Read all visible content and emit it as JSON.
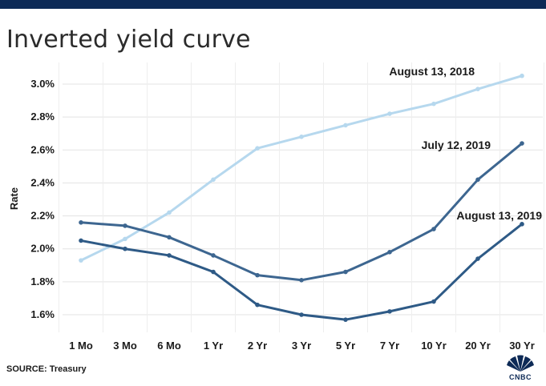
{
  "header": {
    "title": "Inverted yield curve"
  },
  "footer": {
    "source": "SOURCE: Treasury",
    "logo_text": "CNBC"
  },
  "chart_data": {
    "type": "line",
    "ylabel": "Rate",
    "xlabel": "",
    "categories": [
      "1 Mo",
      "3 Mo",
      "6 Mo",
      "1 Yr",
      "2 Yr",
      "3 Yr",
      "5 Yr",
      "7 Yr",
      "10 Yr",
      "20 Yr",
      "30 Yr"
    ],
    "ylim": [
      1.5,
      3.1
    ],
    "yticks": [
      1.6,
      1.8,
      2.0,
      2.2,
      2.4,
      2.6,
      2.8,
      3.0
    ],
    "ytick_labels": [
      "1.6%",
      "1.8%",
      "2.0%",
      "2.2%",
      "2.4%",
      "2.6%",
      "2.8%",
      "3.0%"
    ],
    "grid": true,
    "series": [
      {
        "name": "August 13, 2018",
        "color": "#b6d8ee",
        "values": [
          1.93,
          2.06,
          2.22,
          2.42,
          2.61,
          2.68,
          2.75,
          2.82,
          2.88,
          2.97,
          3.05
        ]
      },
      {
        "name": "July 12, 2019",
        "color": "#3d6690",
        "values": [
          2.16,
          2.14,
          2.07,
          1.96,
          1.84,
          1.81,
          1.86,
          1.98,
          2.12,
          2.42,
          2.64
        ]
      },
      {
        "name": "August 13, 2019",
        "color": "#2e5a86",
        "values": [
          2.05,
          2.0,
          1.96,
          1.86,
          1.66,
          1.6,
          1.57,
          1.62,
          1.68,
          1.94,
          2.15
        ]
      }
    ]
  }
}
